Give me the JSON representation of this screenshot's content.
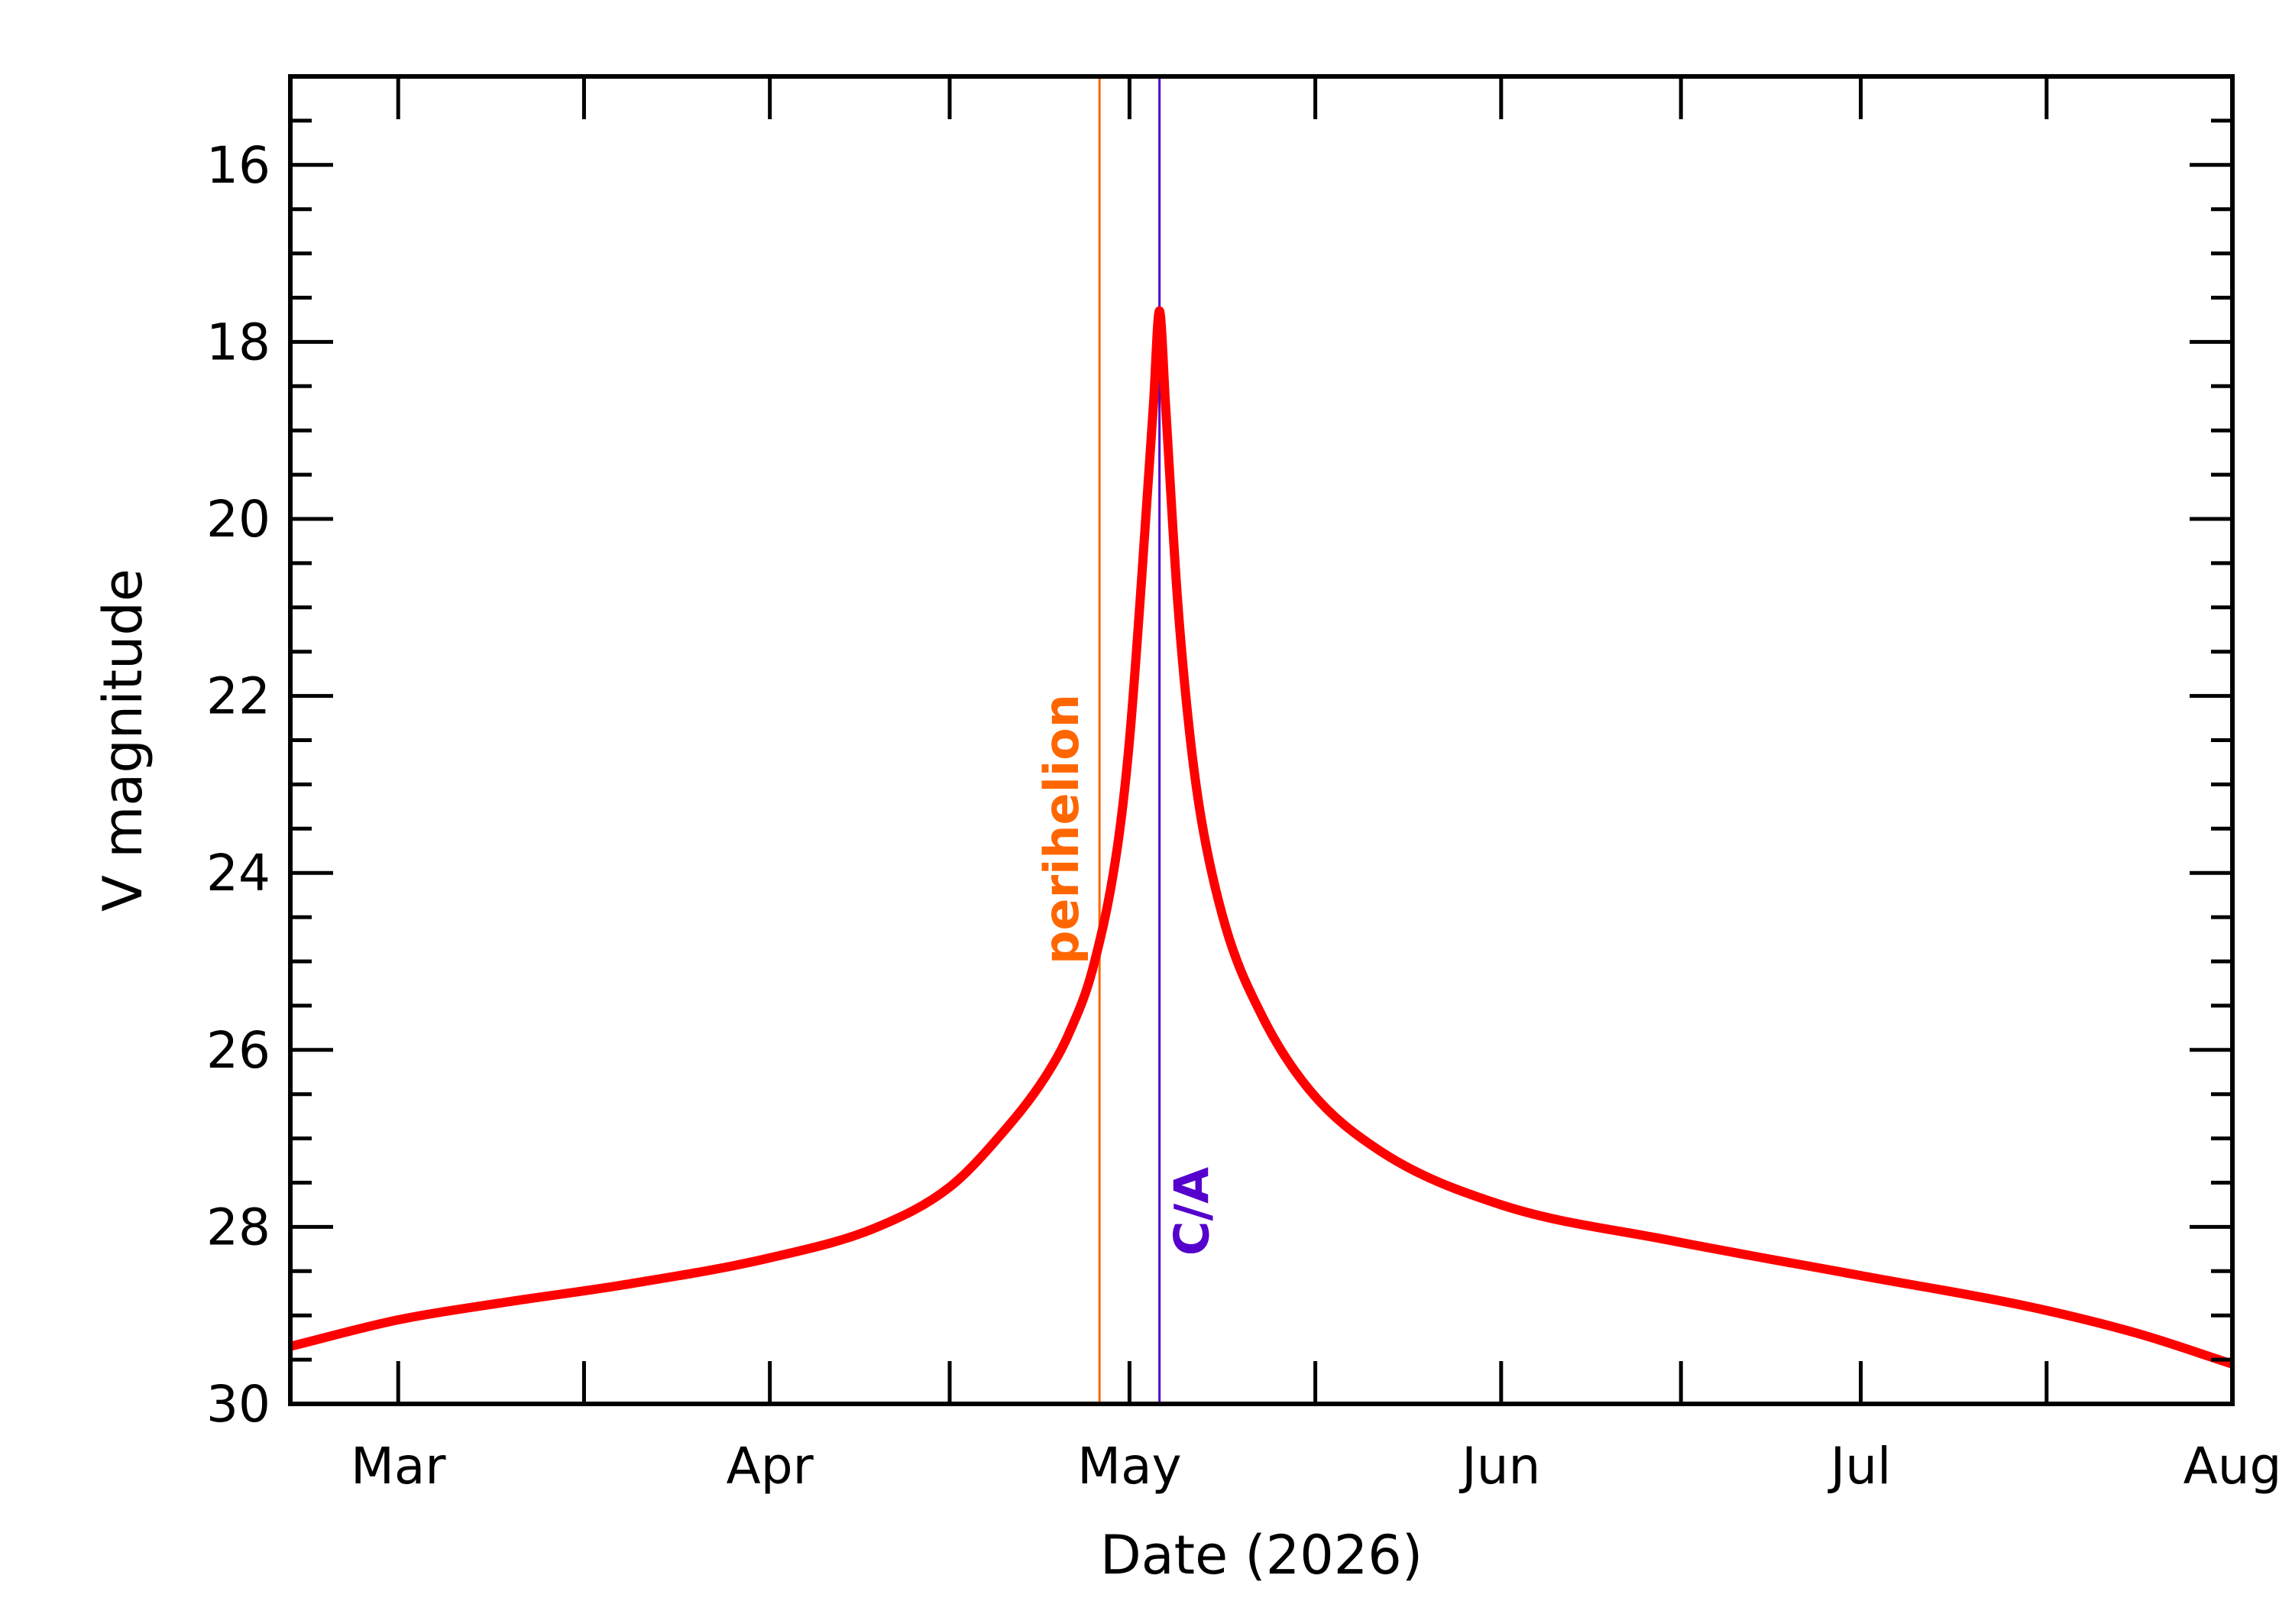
{
  "chart_data": {
    "type": "line",
    "title": "",
    "xlabel": "Date (2026)",
    "ylabel": "V magnitude",
    "x_axis": {
      "type": "date",
      "range": [
        "2026-02-20",
        "2026-08-01"
      ],
      "month_ticks": [
        {
          "date": "2026-03-01",
          "label": "Mar"
        },
        {
          "date": "2026-04-01",
          "label": "Apr"
        },
        {
          "date": "2026-05-01",
          "label": "May"
        },
        {
          "date": "2026-06-01",
          "label": "Jun"
        },
        {
          "date": "2026-07-01",
          "label": "Jul"
        },
        {
          "date": "2026-08-01",
          "label": "Aug"
        }
      ]
    },
    "y_axis": {
      "range": [
        30,
        15
      ],
      "inverted": true,
      "ticks": [
        16,
        18,
        20,
        22,
        24,
        26,
        28,
        30
      ],
      "minor_step": 0.5
    },
    "grid": false,
    "series": [
      {
        "color": "#ff0000",
        "points": [
          [
            "2026-02-20",
            29.35
          ],
          [
            "2026-03-01",
            29.05
          ],
          [
            "2026-03-10",
            28.85
          ],
          [
            "2026-03-20",
            28.65
          ],
          [
            "2026-04-01",
            28.35
          ],
          [
            "2026-04-10",
            28.0
          ],
          [
            "2026-04-16",
            27.55
          ],
          [
            "2026-04-20",
            27.0
          ],
          [
            "2026-04-24",
            26.3
          ],
          [
            "2026-04-26",
            25.8
          ],
          [
            "2026-04-28",
            25.05
          ],
          [
            "2026-04-30",
            23.7
          ],
          [
            "2026-05-01",
            22.5
          ],
          [
            "2026-05-02",
            20.7
          ],
          [
            "2026-05-03",
            18.7
          ],
          [
            "2026-05-03T12:00",
            17.65
          ],
          [
            "2026-05-04",
            18.7
          ],
          [
            "2026-05-05",
            20.9
          ],
          [
            "2026-05-06",
            22.4
          ],
          [
            "2026-05-07",
            23.4
          ],
          [
            "2026-05-09",
            24.6
          ],
          [
            "2026-05-12",
            25.6
          ],
          [
            "2026-05-16",
            26.45
          ],
          [
            "2026-05-22",
            27.15
          ],
          [
            "2026-06-01",
            27.75
          ],
          [
            "2026-06-15",
            28.15
          ],
          [
            "2026-07-01",
            28.55
          ],
          [
            "2026-07-15",
            28.9
          ],
          [
            "2026-07-24",
            29.2
          ],
          [
            "2026-08-01",
            29.55
          ]
        ]
      }
    ],
    "markers": [
      {
        "label": "perihelion",
        "date": "2026-04-28T12:00",
        "color": "#ff6600"
      },
      {
        "label": "C/A",
        "date": "2026-05-03T12:00",
        "color": "#5500cc"
      }
    ]
  }
}
